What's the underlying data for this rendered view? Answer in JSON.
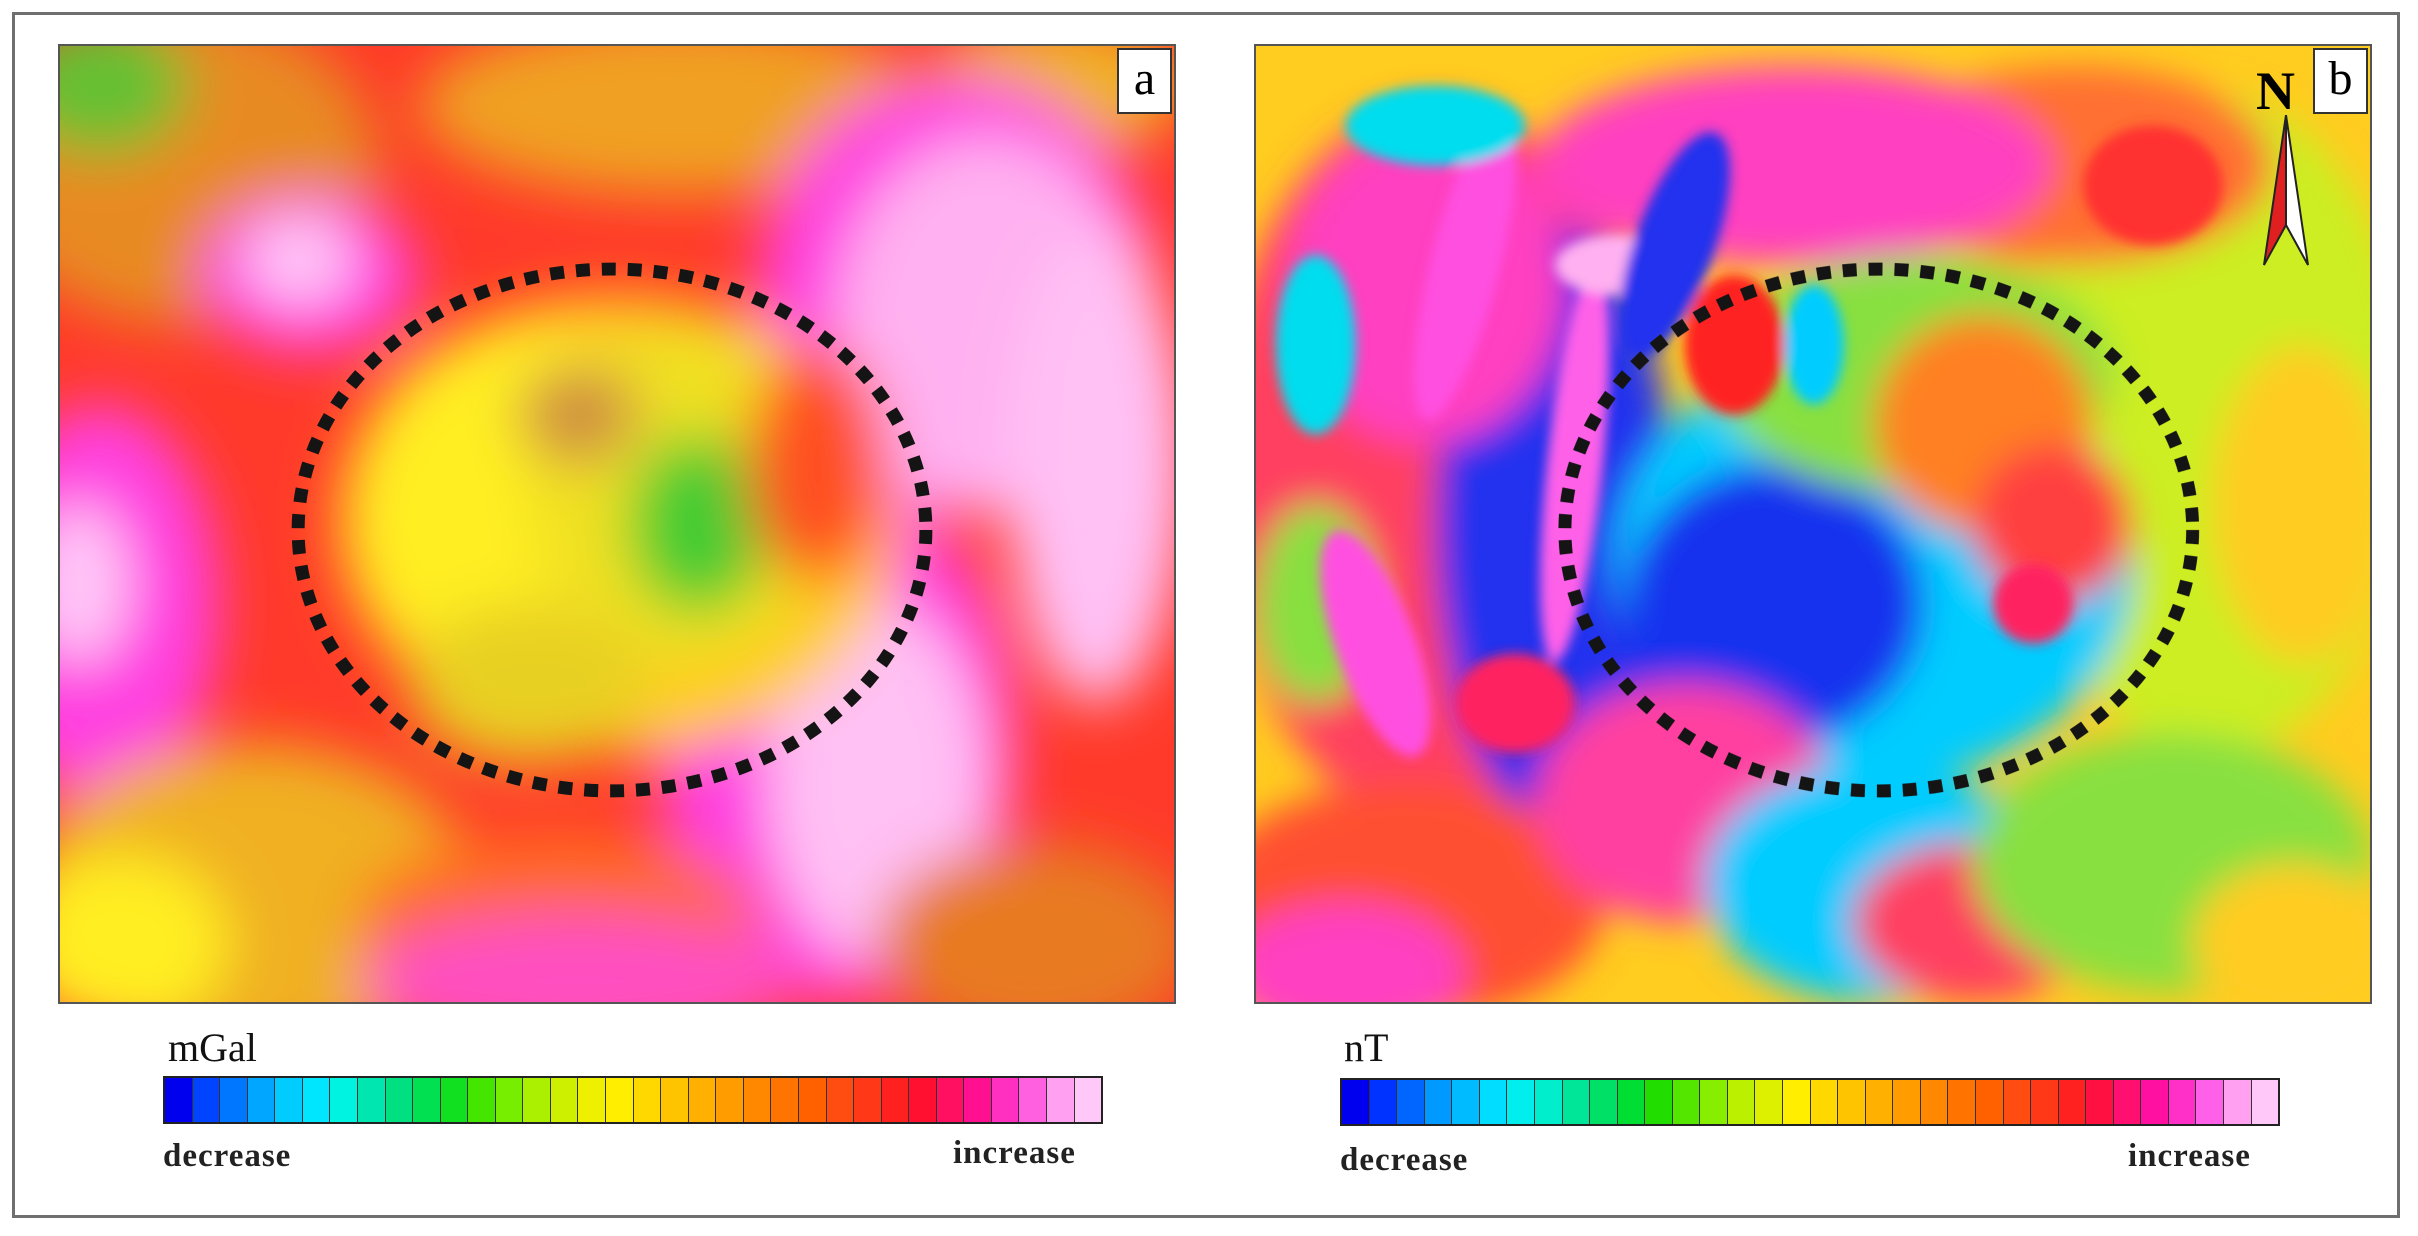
{
  "panels": [
    {
      "tag": "a",
      "unit": "mGal",
      "low_label": "decrease",
      "high_label": "increase",
      "palette": [
        "#0000ee",
        "#0044ff",
        "#0077ff",
        "#00a6ff",
        "#00ccff",
        "#00e6ff",
        "#00f2e0",
        "#00e6b0",
        "#00e080",
        "#00e050",
        "#10e020",
        "#44e600",
        "#77ee00",
        "#aaf000",
        "#ccf000",
        "#eef000",
        "#ffee00",
        "#ffd800",
        "#ffc400",
        "#ffb000",
        "#ff9c00",
        "#ff8800",
        "#ff7400",
        "#ff6000",
        "#ff4c10",
        "#ff3818",
        "#ff2020",
        "#ff1030",
        "#ff1060",
        "#ff1090",
        "#ff30c0",
        "#ff60e0",
        "#ffa0f0",
        "#ffc8f8"
      ]
    },
    {
      "tag": "b",
      "unit": "nT",
      "low_label": "decrease",
      "high_label": "increase",
      "north_label": "N",
      "palette": [
        "#0000ee",
        "#0033ff",
        "#0066ff",
        "#0099ff",
        "#00bbff",
        "#00ddff",
        "#00eeee",
        "#00eecc",
        "#00e699",
        "#00e066",
        "#00dd33",
        "#22dd00",
        "#55e600",
        "#88ee00",
        "#bbf000",
        "#ddf000",
        "#ffee00",
        "#ffd800",
        "#ffc400",
        "#ffb000",
        "#ff9c00",
        "#ff8800",
        "#ff7400",
        "#ff6000",
        "#ff4c10",
        "#ff3818",
        "#ff2020",
        "#ff1040",
        "#ff1070",
        "#ff10a0",
        "#ff30c8",
        "#ff60e8",
        "#ffa0f0",
        "#ffc8f8"
      ]
    }
  ]
}
